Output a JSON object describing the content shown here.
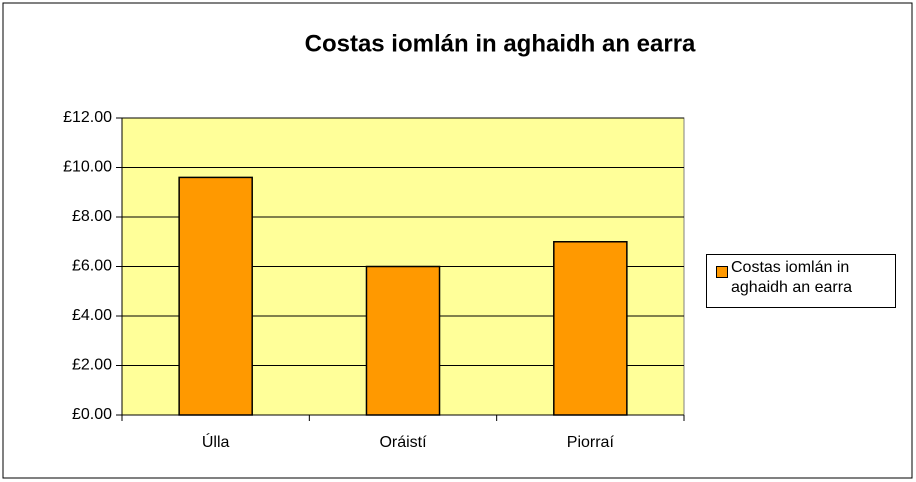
{
  "chart_data": {
    "type": "bar",
    "title": "Costas iomlán in aghaidh an earra",
    "categories": [
      "Úlla",
      "Oráistí",
      "Piorraí"
    ],
    "series": [
      {
        "name": "Costas iomlán in aghaidh an earra",
        "color": "#ff9900",
        "values": [
          9.6,
          6.0,
          7.0
        ]
      }
    ],
    "ylim": [
      0,
      12
    ],
    "yticks": [
      {
        "value": 0,
        "label": "£0.00"
      },
      {
        "value": 2,
        "label": "£2.00"
      },
      {
        "value": 4,
        "label": "£4.00"
      },
      {
        "value": 6,
        "label": "£6.00"
      },
      {
        "value": 8,
        "label": "£8.00"
      },
      {
        "value": 10,
        "label": "£10.00"
      },
      {
        "value": 12,
        "label": "£12.00"
      }
    ],
    "grid": true,
    "plot_background": "#ffff99",
    "legend": "right"
  }
}
